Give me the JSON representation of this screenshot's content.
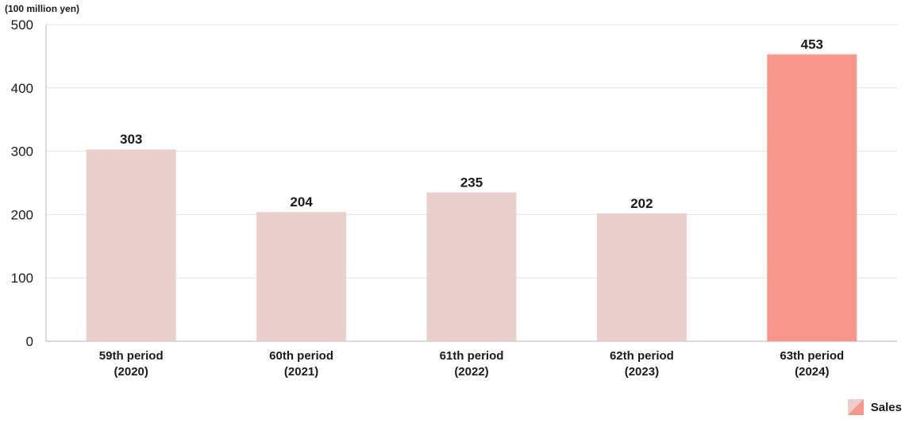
{
  "chart_data": {
    "type": "bar",
    "unit_label": "(100 million yen)",
    "categories": [
      [
        "59th period",
        "(2020)"
      ],
      [
        "60th period",
        "(2021)"
      ],
      [
        "61th period",
        "(2022)"
      ],
      [
        "62th period",
        "(2023)"
      ],
      [
        "63th period",
        "(2024)"
      ]
    ],
    "series": [
      {
        "name": "Sales",
        "values": [
          303,
          204,
          235,
          202,
          453
        ]
      }
    ],
    "data_labels": [
      "303",
      "204",
      "235",
      "202",
      "453"
    ],
    "ylim": [
      0,
      500
    ],
    "yticks": [
      0,
      100,
      200,
      300,
      400,
      500
    ],
    "highlight_index": 4,
    "colors": {
      "bar": "#e9d0cd",
      "highlight": "#f8958c",
      "grid": "#e3e3e3",
      "axis": "#b5b5b5"
    },
    "grid": true,
    "legend_position": "bottom-right"
  }
}
